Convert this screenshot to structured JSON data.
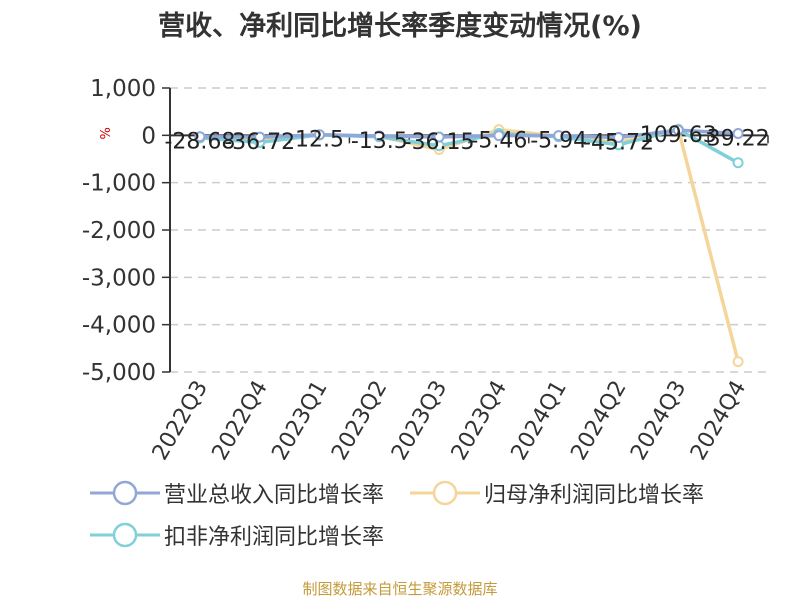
{
  "title": "营收、净利同比增长率季度变动情况(%)",
  "source_note": "制图数据来自恒生聚源数据库",
  "colors": {
    "revenue": "#8fa8d8",
    "net_profit": "#f5d59a",
    "deducted_net_profit": "#7fd0d8",
    "axis": "#333333",
    "grid": "#cccccc",
    "text": "#333333",
    "unit": "#cc0000",
    "source": "#c49a3a"
  },
  "chart_data": {
    "type": "line",
    "title": "营收、净利同比增长率季度变动情况(%)",
    "ylabel": "%",
    "ylim": [
      -5000,
      1000
    ],
    "yticks": [
      1000,
      0,
      -1000,
      -2000,
      -3000,
      -4000,
      -5000
    ],
    "ytick_labels": [
      "1,000",
      "0",
      "-1,000",
      "-2,000",
      "-3,000",
      "-4,000",
      "-5,000"
    ],
    "grid": true,
    "legend_position": "bottom",
    "categories": [
      "2022Q3",
      "2022Q4",
      "2023Q1",
      "2023Q2",
      "2023Q3",
      "2023Q4",
      "2024Q1",
      "2024Q2",
      "2024Q3",
      "2024Q4"
    ],
    "series": [
      {
        "name": "营业总收入同比增长率",
        "color_key": "revenue",
        "values": [
          -28.68,
          -36.72,
          12.5,
          -13.5,
          -36.15,
          -5.46,
          -5.94,
          -45.72,
          109.63,
          39.22
        ],
        "data_labels": [
          "-28.68",
          "-36.72",
          "12.5",
          "-13.5",
          "-36.15",
          "-5.46",
          "-5.94",
          "-45.72",
          "109.63",
          "39.22"
        ]
      },
      {
        "name": "归母净利润同比增长率",
        "color_key": "net_profit",
        "values": [
          -60,
          -100,
          10,
          -20,
          -300,
          120,
          -20,
          -150,
          130,
          -4780
        ]
      },
      {
        "name": "扣非净利润同比增长率",
        "color_key": "deducted_net_profit",
        "values": [
          -50,
          -150,
          10,
          -30,
          -220,
          40,
          -30,
          -200,
          120,
          -580
        ]
      }
    ]
  }
}
